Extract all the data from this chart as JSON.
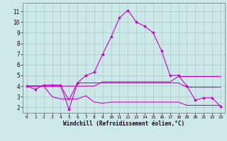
{
  "xlabel": "Windchill (Refroidissement éolien,°C)",
  "background_color": "#cce8e8",
  "grid_color": "#aacccc",
  "line_color": "#cc00cc",
  "x_ticks": [
    0,
    1,
    2,
    3,
    4,
    5,
    6,
    7,
    8,
    9,
    10,
    11,
    12,
    13,
    14,
    15,
    16,
    17,
    18,
    19,
    20,
    21,
    22,
    23
  ],
  "y_ticks": [
    2,
    3,
    4,
    5,
    6,
    7,
    8,
    9,
    10,
    11
  ],
  "ylim": [
    1.5,
    11.8
  ],
  "xlim": [
    -0.5,
    23.5
  ],
  "line1_x": [
    0,
    1,
    2,
    3,
    4,
    5,
    6,
    7,
    8,
    9,
    10,
    11,
    12,
    13,
    14,
    15,
    16,
    17,
    18,
    19,
    20,
    21,
    22,
    23
  ],
  "line1_y": [
    4.0,
    3.7,
    4.1,
    4.1,
    4.1,
    1.8,
    4.3,
    5.0,
    5.3,
    7.0,
    8.6,
    10.4,
    11.1,
    10.0,
    9.6,
    9.0,
    7.3,
    5.0,
    5.0,
    4.0,
    2.7,
    2.9,
    2.9,
    2.1
  ],
  "line2_x": [
    0,
    1,
    2,
    3,
    4,
    5,
    6,
    7,
    8,
    9,
    10,
    11,
    12,
    13,
    14,
    15,
    16,
    17,
    18,
    19,
    20,
    21,
    22,
    23
  ],
  "line2_y": [
    4.0,
    4.0,
    4.0,
    4.0,
    4.0,
    4.0,
    4.0,
    4.0,
    4.0,
    4.4,
    4.4,
    4.4,
    4.4,
    4.4,
    4.4,
    4.4,
    4.4,
    4.4,
    4.9,
    4.9,
    4.9,
    4.9,
    4.9,
    4.9
  ],
  "line3_x": [
    0,
    1,
    2,
    3,
    4,
    5,
    6,
    7,
    8,
    9,
    10,
    11,
    12,
    13,
    14,
    15,
    16,
    17,
    18,
    19,
    20,
    21,
    22,
    23
  ],
  "line3_y": [
    4.0,
    4.0,
    4.0,
    3.0,
    2.8,
    2.8,
    2.8,
    3.1,
    2.5,
    2.4,
    2.5,
    2.5,
    2.5,
    2.5,
    2.5,
    2.5,
    2.5,
    2.5,
    2.5,
    2.2,
    2.2,
    2.2,
    2.2,
    2.2
  ],
  "line4_x": [
    0,
    1,
    2,
    3,
    4,
    5,
    6,
    7,
    8,
    9,
    10,
    11,
    12,
    13,
    14,
    15,
    16,
    17,
    18,
    19,
    20,
    21,
    22,
    23
  ],
  "line4_y": [
    4.0,
    4.0,
    4.0,
    4.0,
    4.0,
    2.7,
    4.3,
    4.3,
    4.3,
    4.3,
    4.3,
    4.3,
    4.3,
    4.3,
    4.3,
    4.3,
    4.3,
    4.3,
    4.3,
    3.9,
    3.9,
    3.9,
    3.9,
    3.9
  ],
  "marker_style": "D",
  "marker_size": 2.0,
  "line_width": 0.8
}
